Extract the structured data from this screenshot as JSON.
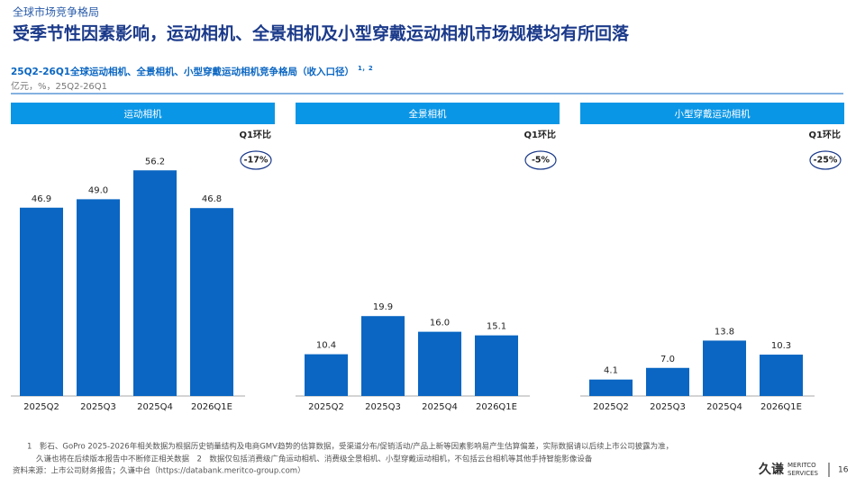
{
  "header": {
    "section": "全球市场竞争格局",
    "title": "受季节性因素影响，运动相机、全景相机及小型穿戴运动相机市场规模均有所回落",
    "subtitle": "25Q2-26Q1全球运动相机、全景相机、小型穿戴运动相机竞争格局（收入口径）",
    "superscript": "1，2",
    "units": "亿元，%，25Q2-26Q1"
  },
  "chart_data": [
    {
      "type": "bar",
      "title": "运动相机",
      "categories": [
        "2025Q2",
        "2025Q3",
        "2025Q4",
        "2026Q1E"
      ],
      "values": [
        46.9,
        49.0,
        56.2,
        46.8
      ],
      "value_labels": [
        "46.9",
        "49.0",
        "56.2",
        "46.8"
      ],
      "color": "#0a66c2",
      "ylim": [
        0,
        65
      ],
      "annotation": "Q1环比",
      "change": "-17%"
    },
    {
      "type": "bar",
      "title": "全景相机",
      "categories": [
        "2025Q2",
        "2025Q3",
        "2025Q4",
        "2026Q1E"
      ],
      "values": [
        10.4,
        19.9,
        16.0,
        15.1
      ],
      "value_labels": [
        "10.4",
        "19.9",
        "16.0",
        "15.1"
      ],
      "color": "#0a66c2",
      "ylim": [
        0,
        65
      ],
      "annotation": "Q1环比",
      "change": "-5%"
    },
    {
      "type": "bar",
      "title": "小型穿戴运动相机",
      "categories": [
        "2025Q2",
        "2025Q3",
        "2025Q4",
        "2026Q1E"
      ],
      "values": [
        4.1,
        7.0,
        13.8,
        10.3
      ],
      "value_labels": [
        "4.1",
        "7.0",
        "13.8",
        "10.3"
      ],
      "color": "#0a66c2",
      "ylim": [
        0,
        65
      ],
      "annotation": "Q1环比",
      "change": "-25%"
    }
  ],
  "footnotes": [
    "1　影石、GoPro 2025-2026年相关数据为根据历史销量结构及电商GMV趋势的估算数据，受渠道分布/促销活动/产品上新等因素影响易产生估算偏差，实际数据请以后续上市公司披露为准，",
    "久谦也将在后续版本报告中不断修正相关数据　2　数据仅包括消费级广角运动相机、消费级全景相机、小型穿戴运动相机，不包括云台相机等其他手持智能影像设备"
  ],
  "source": "资料来源：上市公司财务报告；久谦中台（https://databank.meritco-group.com）",
  "footer": {
    "brand_cn": "久谦",
    "brand_en_1": "MERITCO",
    "brand_en_2": "SERVICES",
    "page": "16"
  }
}
